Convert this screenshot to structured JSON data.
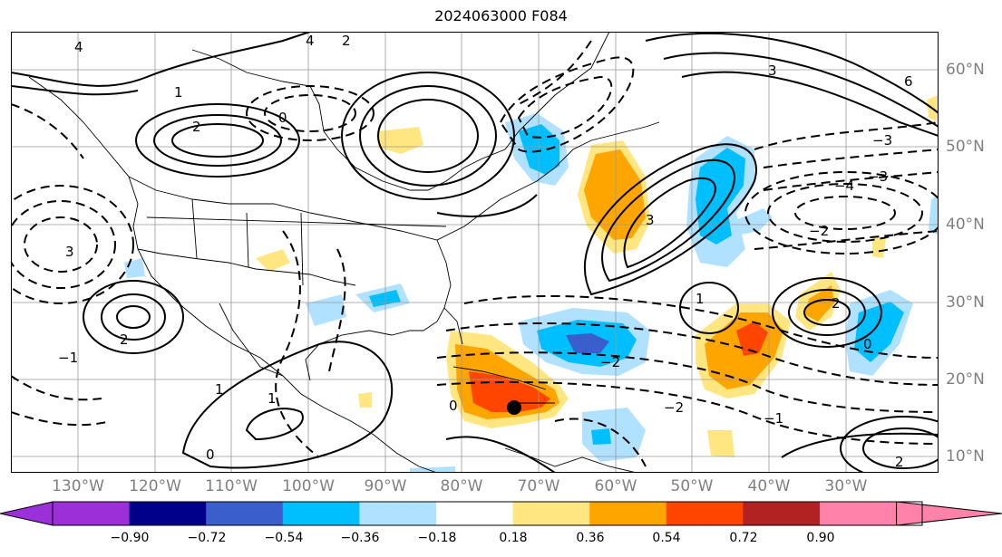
{
  "title": "2024063000 F084",
  "lon_labels": [
    "130°W",
    "120°W",
    "110°W",
    "100°W",
    "90°W",
    "80°W",
    "70°W",
    "60°W",
    "50°W",
    "40°W",
    "30°W"
  ],
  "lat_labels": [
    "60°N",
    "50°N",
    "40°N",
    "30°N",
    "20°N",
    "10°N"
  ],
  "colorbar": {
    "ticks": [
      "−0.90",
      "−0.72",
      "−0.54",
      "−0.36",
      "−0.18",
      "0.18",
      "0.36",
      "0.54",
      "0.72",
      "0.90"
    ],
    "colors": [
      "#9b30d9",
      "#00008b",
      "#3a5fcd",
      "#00bfff",
      "#b0e2ff",
      "#ffffff",
      "#ffe680",
      "#ffa500",
      "#ff4500",
      "#b22222",
      "#ff82ab"
    ]
  },
  "contour_labels": [
    "4",
    "3",
    "2",
    "1",
    "0",
    "−1",
    "−2",
    "−3",
    "−4",
    "6"
  ],
  "marker": "black-dot",
  "colors": {
    "positive_contour": "#000000",
    "negative_contour": "#000000",
    "grid": "#999999"
  }
}
